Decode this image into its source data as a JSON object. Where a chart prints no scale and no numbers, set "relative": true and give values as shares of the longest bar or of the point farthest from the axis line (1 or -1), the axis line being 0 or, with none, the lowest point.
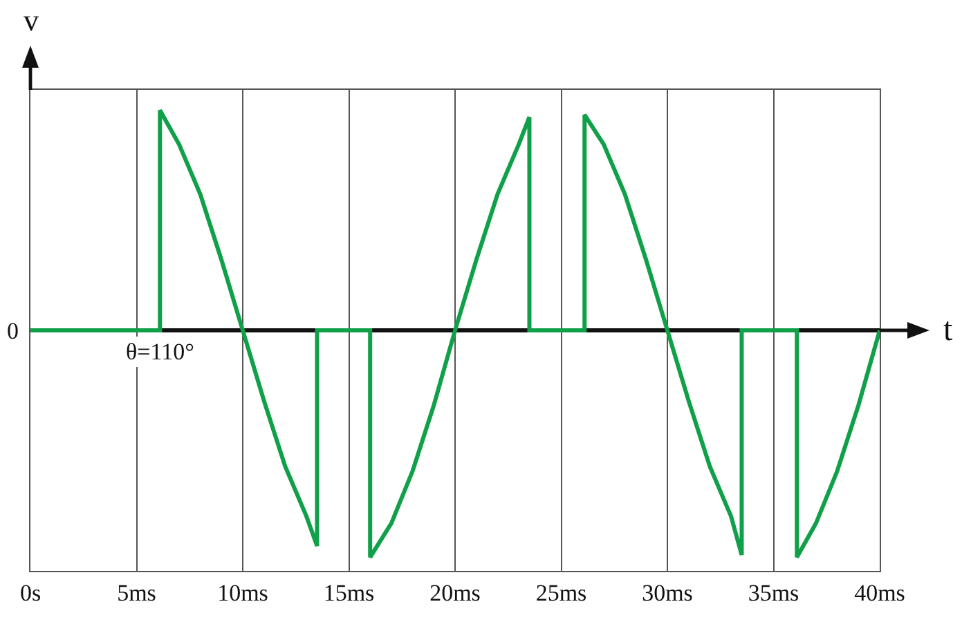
{
  "chart_data": {
    "type": "line",
    "relative": true,
    "xlabel": "t",
    "ylabel": "v",
    "x": [
      0,
      6.1,
      6.1,
      7,
      8,
      9,
      10,
      11,
      12,
      13,
      13.5,
      13.5,
      16,
      16,
      17,
      18,
      19,
      20,
      21,
      22,
      23,
      23.5,
      23.5,
      26.1,
      26.1,
      27,
      28,
      29,
      30,
      31,
      32,
      33,
      33.5,
      33.5,
      36.1,
      36.1,
      37,
      38,
      39,
      40
    ],
    "series": [
      {
        "color": "#11a04a",
        "values": [
          0,
          0,
          0.97,
          0.82,
          0.6,
          0.31,
          0,
          -0.31,
          -0.6,
          -0.82,
          -0.95,
          0,
          0,
          -1,
          -0.85,
          -0.62,
          -0.33,
          0,
          0.31,
          0.6,
          0.82,
          0.94,
          0,
          0,
          0.95,
          0.82,
          0.6,
          0.31,
          0,
          -0.31,
          -0.6,
          -0.82,
          -0.99,
          0,
          0,
          -1,
          -0.85,
          -0.62,
          -0.33,
          0
        ]
      }
    ],
    "xlim": [
      0,
      40
    ],
    "xticks": [
      {
        "value": 0,
        "label": "0s"
      },
      {
        "value": 5,
        "label": "5ms"
      },
      {
        "value": 10,
        "label": "10ms"
      },
      {
        "value": 15,
        "label": "15ms"
      },
      {
        "value": 20,
        "label": "20ms"
      },
      {
        "value": 25,
        "label": "25ms"
      },
      {
        "value": 30,
        "label": "30ms"
      },
      {
        "value": 35,
        "label": "35ms"
      },
      {
        "value": 40,
        "label": "40ms"
      }
    ],
    "grid": "x",
    "marker": "none",
    "line_style": "solid",
    "annotations": [
      {
        "text": "θ=110°",
        "x": 6.1,
        "y": 0
      },
      {
        "text": "0",
        "x": 0,
        "y": 0
      }
    ]
  }
}
